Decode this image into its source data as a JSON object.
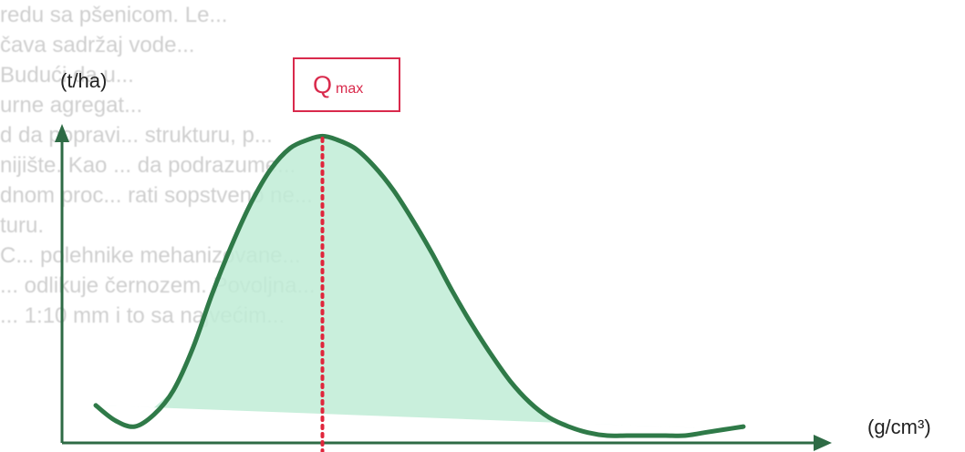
{
  "background_text": [
    "redu sa pšenicom. Le... ",
    "čava sadržaj vode...",
    "   Budući da u...",
    "urne agregat...",
    "d da popravi... strukturu, p...",
    "nijište. Kao ... da podrazume...",
    "dnom proc... rati sopstveno ne...",
    "turu.",
    "   C... polehnike mehanizovane...",
    "... odlikuje černozem. Povoljna...",
    "... 1:10 mm i to sa najvećim..."
  ],
  "chart_data": {
    "type": "area",
    "title": "",
    "ylabel": "(t/ha)",
    "xlabel": "(g/cm³)",
    "annotation": {
      "label": "Q",
      "subscript": "max"
    },
    "colors": {
      "curve": "#2f7a48",
      "fill": "#bfecd6",
      "axis": "#2e6b45",
      "marker": "#e0263c"
    },
    "xlim": [
      0,
      100
    ],
    "ylim": [
      0,
      100
    ],
    "baseline": {
      "start": 13,
      "end": 5
    },
    "peak_x": 35,
    "series": [
      {
        "x": [
          0,
          3,
          6,
          9,
          12,
          15,
          18,
          21,
          24,
          27,
          30,
          33,
          35,
          37,
          40,
          43,
          46,
          49,
          52,
          55,
          58,
          61,
          64,
          67,
          70,
          73,
          76,
          79,
          82,
          85,
          88,
          91,
          94,
          97,
          100
        ],
        "y": [
          13,
          8,
          6,
          10,
          18,
          32,
          50,
          66,
          80,
          91,
          98,
          101,
          102,
          101,
          98,
          92,
          84,
          74,
          63,
          51,
          40,
          30,
          21,
          14,
          9,
          6,
          4,
          3,
          3,
          3,
          3,
          3,
          4,
          5,
          6
        ]
      }
    ]
  }
}
